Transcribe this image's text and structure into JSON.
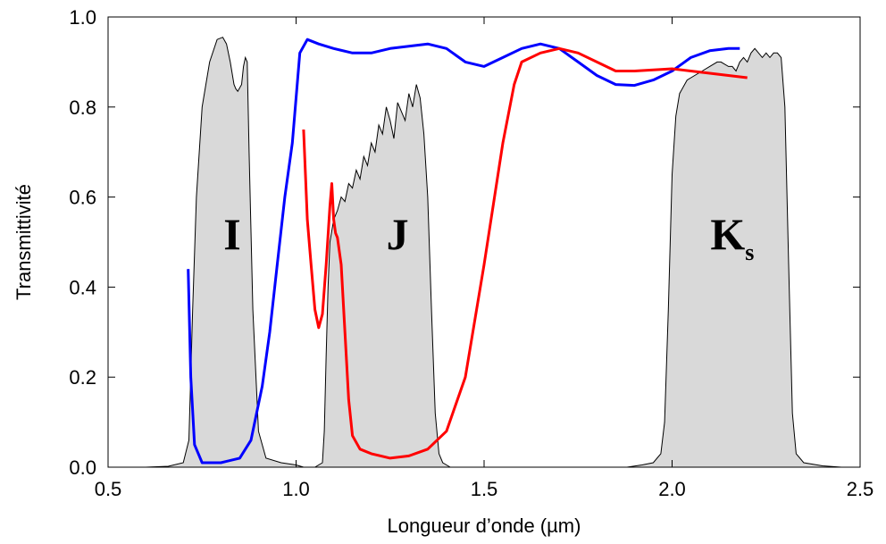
{
  "chart_data": {
    "type": "area",
    "xlabel": "Longueur d’onde (µm)",
    "ylabel": "Transmittivité",
    "xlim": [
      0.5,
      2.5
    ],
    "ylim": [
      0.0,
      1.0
    ],
    "xticks": [
      "0.5",
      "1.0",
      "1.5",
      "2.0",
      "2.5"
    ],
    "yticks": [
      "0.0",
      "0.2",
      "0.4",
      "0.6",
      "0.8",
      "1.0"
    ],
    "grid": false,
    "band_labels": [
      {
        "text": "I",
        "sub": "",
        "x": 0.83,
        "y": 0.52
      },
      {
        "text": "J",
        "sub": "",
        "x": 1.27,
        "y": 0.52
      },
      {
        "text": "K",
        "sub": "s",
        "x": 2.16,
        "y": 0.52
      }
    ],
    "filled_series": [
      {
        "band": "I",
        "color": "#d9d9d9",
        "x": [
          0.6,
          0.66,
          0.7,
          0.715,
          0.725,
          0.735,
          0.75,
          0.77,
          0.79,
          0.805,
          0.815,
          0.825,
          0.835,
          0.84,
          0.845,
          0.855,
          0.86,
          0.865,
          0.87,
          0.875,
          0.885,
          0.9,
          0.92,
          0.96,
          1.0,
          1.02
        ],
        "y": [
          0.0,
          0.002,
          0.01,
          0.06,
          0.35,
          0.6,
          0.8,
          0.9,
          0.95,
          0.955,
          0.94,
          0.9,
          0.85,
          0.84,
          0.835,
          0.85,
          0.89,
          0.91,
          0.9,
          0.7,
          0.35,
          0.08,
          0.02,
          0.01,
          0.005,
          0.0
        ]
      },
      {
        "band": "J",
        "color": "#d9d9d9",
        "x": [
          1.01,
          1.05,
          1.07,
          1.075,
          1.08,
          1.085,
          1.09,
          1.1,
          1.11,
          1.12,
          1.13,
          1.14,
          1.15,
          1.16,
          1.17,
          1.18,
          1.19,
          1.2,
          1.21,
          1.22,
          1.23,
          1.24,
          1.25,
          1.26,
          1.27,
          1.28,
          1.29,
          1.3,
          1.31,
          1.32,
          1.33,
          1.34,
          1.35,
          1.36,
          1.37,
          1.38,
          1.39,
          1.4,
          1.41,
          1.42,
          1.44
        ],
        "y": [
          0.0,
          0.0,
          0.01,
          0.08,
          0.25,
          0.4,
          0.5,
          0.55,
          0.57,
          0.6,
          0.59,
          0.63,
          0.62,
          0.66,
          0.64,
          0.69,
          0.67,
          0.72,
          0.7,
          0.76,
          0.74,
          0.8,
          0.77,
          0.73,
          0.81,
          0.79,
          0.77,
          0.83,
          0.8,
          0.85,
          0.82,
          0.74,
          0.6,
          0.35,
          0.12,
          0.03,
          0.01,
          0.005,
          0.0,
          0.0,
          0.0
        ]
      },
      {
        "band": "Ks",
        "color": "#d9d9d9",
        "x": [
          1.88,
          1.92,
          1.95,
          1.97,
          1.98,
          1.99,
          2.0,
          2.01,
          2.02,
          2.04,
          2.06,
          2.08,
          2.1,
          2.12,
          2.13,
          2.15,
          2.16,
          2.17,
          2.18,
          2.19,
          2.2,
          2.21,
          2.22,
          2.23,
          2.24,
          2.25,
          2.26,
          2.27,
          2.28,
          2.29,
          2.3,
          2.31,
          2.32,
          2.33,
          2.35,
          2.4,
          2.45
        ],
        "y": [
          0.0,
          0.005,
          0.01,
          0.03,
          0.1,
          0.35,
          0.65,
          0.78,
          0.83,
          0.86,
          0.87,
          0.88,
          0.89,
          0.9,
          0.9,
          0.89,
          0.89,
          0.88,
          0.9,
          0.91,
          0.9,
          0.92,
          0.93,
          0.92,
          0.91,
          0.92,
          0.91,
          0.92,
          0.92,
          0.91,
          0.8,
          0.45,
          0.12,
          0.03,
          0.01,
          0.003,
          0.0
        ]
      }
    ],
    "series": [
      {
        "color": "#0000ff",
        "x": [
          0.713,
          0.72,
          0.73,
          0.75,
          0.8,
          0.85,
          0.88,
          0.91,
          0.93,
          0.95,
          0.97,
          0.99,
          1.01,
          1.03,
          1.06,
          1.1,
          1.15,
          1.2,
          1.25,
          1.3,
          1.35,
          1.4,
          1.45,
          1.5,
          1.55,
          1.6,
          1.65,
          1.7,
          1.75,
          1.8,
          1.85,
          1.9,
          1.95,
          2.0,
          2.05,
          2.1,
          2.15,
          2.18
        ],
        "y": [
          0.44,
          0.2,
          0.05,
          0.01,
          0.01,
          0.02,
          0.06,
          0.18,
          0.3,
          0.45,
          0.6,
          0.72,
          0.92,
          0.95,
          0.94,
          0.93,
          0.92,
          0.92,
          0.93,
          0.935,
          0.94,
          0.93,
          0.9,
          0.89,
          0.91,
          0.93,
          0.94,
          0.93,
          0.9,
          0.87,
          0.85,
          0.848,
          0.86,
          0.88,
          0.91,
          0.925,
          0.93,
          0.93
        ]
      },
      {
        "color": "#ff0000",
        "x": [
          1.02,
          1.025,
          1.03,
          1.04,
          1.05,
          1.06,
          1.07,
          1.08,
          1.09,
          1.095,
          1.1,
          1.105,
          1.11,
          1.12,
          1.13,
          1.14,
          1.15,
          1.17,
          1.2,
          1.25,
          1.3,
          1.35,
          1.4,
          1.45,
          1.5,
          1.55,
          1.58,
          1.6,
          1.65,
          1.7,
          1.75,
          1.8,
          1.85,
          1.9,
          2.0,
          2.05,
          2.1,
          2.15,
          2.2
        ],
        "y": [
          0.75,
          0.65,
          0.55,
          0.45,
          0.35,
          0.31,
          0.34,
          0.45,
          0.58,
          0.63,
          0.55,
          0.52,
          0.51,
          0.45,
          0.3,
          0.15,
          0.07,
          0.04,
          0.03,
          0.02,
          0.025,
          0.04,
          0.08,
          0.2,
          0.45,
          0.72,
          0.85,
          0.9,
          0.92,
          0.93,
          0.92,
          0.9,
          0.88,
          0.88,
          0.885,
          0.88,
          0.875,
          0.87,
          0.865
        ]
      }
    ]
  }
}
